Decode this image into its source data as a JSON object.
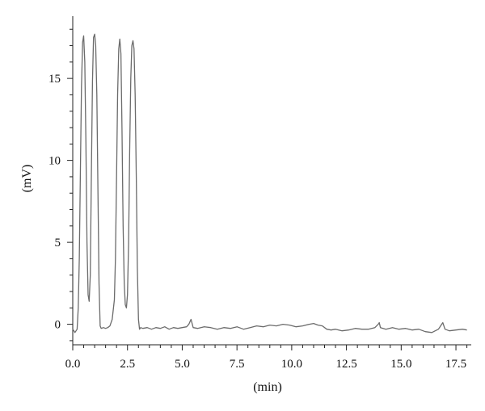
{
  "chart_data": {
    "type": "line",
    "title": "",
    "xlabel": "(min)",
    "ylabel": "(mV)",
    "xlim": [
      0,
      18.2
    ],
    "ylim": [
      -1.3,
      18.8
    ],
    "x_ticks": [
      0.0,
      2.5,
      5.0,
      7.5,
      10.0,
      12.5,
      15.0,
      17.5
    ],
    "x_tick_labels": [
      "0.0",
      "2.5",
      "5.0",
      "7.5",
      "10.0",
      "12.5",
      "15.0",
      "17.5"
    ],
    "y_ticks": [
      0,
      5,
      10,
      15
    ],
    "y_tick_labels": [
      "0",
      "5",
      "10",
      "15"
    ],
    "grid": false,
    "legend": "none",
    "series": [
      {
        "color": "#6b6b6b",
        "points": [
          [
            0.0,
            -0.3
          ],
          [
            0.05,
            -0.4
          ],
          [
            0.1,
            -0.5
          ],
          [
            0.15,
            -0.4
          ],
          [
            0.2,
            -0.3
          ],
          [
            0.25,
            1.0
          ],
          [
            0.3,
            4.0
          ],
          [
            0.35,
            9.5
          ],
          [
            0.4,
            14.5
          ],
          [
            0.45,
            17.2
          ],
          [
            0.5,
            17.6
          ],
          [
            0.55,
            16.0
          ],
          [
            0.6,
            11.0
          ],
          [
            0.65,
            5.0
          ],
          [
            0.7,
            1.8
          ],
          [
            0.75,
            1.4
          ],
          [
            0.8,
            3.0
          ],
          [
            0.85,
            9.0
          ],
          [
            0.9,
            14.8
          ],
          [
            0.95,
            17.5
          ],
          [
            1.0,
            17.7
          ],
          [
            1.05,
            17.0
          ],
          [
            1.1,
            14.0
          ],
          [
            1.15,
            8.0
          ],
          [
            1.2,
            2.5
          ],
          [
            1.25,
            -0.1
          ],
          [
            1.3,
            -0.25
          ],
          [
            1.4,
            -0.2
          ],
          [
            1.5,
            -0.25
          ],
          [
            1.6,
            -0.2
          ],
          [
            1.7,
            -0.1
          ],
          [
            1.8,
            0.3
          ],
          [
            1.9,
            1.5
          ],
          [
            1.95,
            4.0
          ],
          [
            2.0,
            9.0
          ],
          [
            2.05,
            14.0
          ],
          [
            2.1,
            16.8
          ],
          [
            2.15,
            17.4
          ],
          [
            2.2,
            16.5
          ],
          [
            2.25,
            12.0
          ],
          [
            2.3,
            6.0
          ],
          [
            2.35,
            2.5
          ],
          [
            2.4,
            1.2
          ],
          [
            2.45,
            1.0
          ],
          [
            2.5,
            1.8
          ],
          [
            2.55,
            5.0
          ],
          [
            2.6,
            10.5
          ],
          [
            2.65,
            15.0
          ],
          [
            2.7,
            17.0
          ],
          [
            2.75,
            17.3
          ],
          [
            2.8,
            16.8
          ],
          [
            2.85,
            14.0
          ],
          [
            2.9,
            9.0
          ],
          [
            2.95,
            3.5
          ],
          [
            3.0,
            0.3
          ],
          [
            3.05,
            -0.3
          ],
          [
            3.1,
            -0.2
          ],
          [
            3.2,
            -0.25
          ],
          [
            3.4,
            -0.2
          ],
          [
            3.6,
            -0.3
          ],
          [
            3.8,
            -0.2
          ],
          [
            4.0,
            -0.25
          ],
          [
            4.2,
            -0.15
          ],
          [
            4.4,
            -0.3
          ],
          [
            4.6,
            -0.2
          ],
          [
            4.8,
            -0.25
          ],
          [
            5.0,
            -0.2
          ],
          [
            5.2,
            -0.15
          ],
          [
            5.3,
            0.0
          ],
          [
            5.4,
            0.3
          ],
          [
            5.5,
            -0.2
          ],
          [
            5.7,
            -0.25
          ],
          [
            6.0,
            -0.15
          ],
          [
            6.3,
            -0.2
          ],
          [
            6.6,
            -0.3
          ],
          [
            6.9,
            -0.2
          ],
          [
            7.2,
            -0.25
          ],
          [
            7.5,
            -0.15
          ],
          [
            7.8,
            -0.3
          ],
          [
            8.1,
            -0.2
          ],
          [
            8.4,
            -0.1
          ],
          [
            8.7,
            -0.15
          ],
          [
            9.0,
            -0.05
          ],
          [
            9.3,
            -0.1
          ],
          [
            9.6,
            0.0
          ],
          [
            9.9,
            -0.05
          ],
          [
            10.2,
            -0.15
          ],
          [
            10.5,
            -0.1
          ],
          [
            10.8,
            0.0
          ],
          [
            11.0,
            0.05
          ],
          [
            11.2,
            -0.05
          ],
          [
            11.4,
            -0.1
          ],
          [
            11.6,
            -0.3
          ],
          [
            11.8,
            -0.35
          ],
          [
            12.0,
            -0.3
          ],
          [
            12.3,
            -0.4
          ],
          [
            12.6,
            -0.35
          ],
          [
            12.9,
            -0.25
          ],
          [
            13.2,
            -0.3
          ],
          [
            13.5,
            -0.3
          ],
          [
            13.8,
            -0.2
          ],
          [
            13.95,
            0.0
          ],
          [
            14.0,
            0.1
          ],
          [
            14.05,
            -0.2
          ],
          [
            14.3,
            -0.3
          ],
          [
            14.6,
            -0.2
          ],
          [
            14.9,
            -0.3
          ],
          [
            15.2,
            -0.25
          ],
          [
            15.5,
            -0.35
          ],
          [
            15.8,
            -0.3
          ],
          [
            16.1,
            -0.45
          ],
          [
            16.4,
            -0.5
          ],
          [
            16.7,
            -0.3
          ],
          [
            16.85,
            0.0
          ],
          [
            16.9,
            0.1
          ],
          [
            17.0,
            -0.3
          ],
          [
            17.2,
            -0.4
          ],
          [
            17.5,
            -0.35
          ],
          [
            17.8,
            -0.3
          ],
          [
            18.0,
            -0.35
          ]
        ]
      }
    ]
  }
}
